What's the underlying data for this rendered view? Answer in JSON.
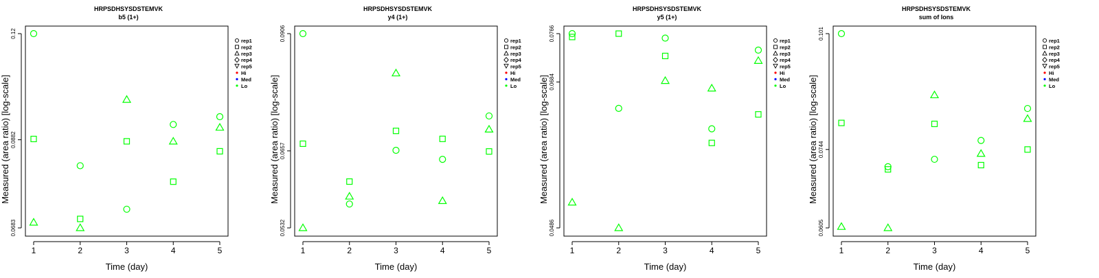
{
  "legend": {
    "entries": [
      {
        "label": "rep1",
        "symbol": "circle"
      },
      {
        "label": "rep2",
        "symbol": "square"
      },
      {
        "label": "rep3",
        "symbol": "triangle-up"
      },
      {
        "label": "rep4",
        "symbol": "diamond"
      },
      {
        "label": "rep5",
        "symbol": "triangle-down"
      },
      {
        "label": "Hi",
        "symbol": "dot",
        "color": "#ff0000"
      },
      {
        "label": "Med",
        "symbol": "dot",
        "color": "#0000ff"
      },
      {
        "label": "Lo",
        "symbol": "dot",
        "color": "#00ff00"
      }
    ]
  },
  "colors": {
    "series": "#00ff00",
    "axis": "#000000"
  },
  "chart_data": [
    {
      "type": "scatter",
      "title": "HRPSDHSYSDSTEMVK",
      "subtitle": "b5 (1+)",
      "xlabel": "Time (day)",
      "ylabel": "Measured (area ratio) [log-scale]",
      "log_y": true,
      "x_ticks": [
        1,
        2,
        3,
        4,
        5
      ],
      "y_ticks": [
        "0.0683",
        "0.0882",
        "0.12"
      ],
      "ylim": [
        0.0683,
        0.12
      ],
      "xlim": [
        1,
        5
      ],
      "grid": false,
      "legend_position": "right",
      "series": [
        {
          "name": "rep1",
          "marker": "circle",
          "x": [
            1,
            2,
            3,
            4,
            5
          ],
          "y": [
            0.12,
            0.0818,
            0.0721,
            0.0922,
            0.0943
          ]
        },
        {
          "name": "rep2",
          "marker": "square",
          "x": [
            1,
            2,
            3,
            4,
            5
          ],
          "y": [
            0.0884,
            0.0701,
            0.0878,
            0.0781,
            0.0853
          ]
        },
        {
          "name": "rep3",
          "marker": "triangle-up",
          "x": [
            1,
            2,
            3,
            4,
            5
          ],
          "y": [
            0.0694,
            0.0683,
            0.0991,
            0.0878,
            0.0914
          ]
        }
      ]
    },
    {
      "type": "scatter",
      "title": "HRPSDHSYSDSTEMVK",
      "subtitle": "y4 (1+)",
      "xlabel": "Time (day)",
      "ylabel": "Measured (area ratio) [log-scale]",
      "log_y": true,
      "x_ticks": [
        1,
        2,
        3,
        4,
        5
      ],
      "y_ticks": [
        "0.0532",
        "0.0657",
        "0.0906"
      ],
      "ylim": [
        0.0532,
        0.0906
      ],
      "xlim": [
        1,
        5
      ],
      "grid": false,
      "legend_position": "right",
      "series": [
        {
          "name": "rep1",
          "marker": "circle",
          "x": [
            1,
            2,
            3,
            4,
            5
          ],
          "y": [
            0.0906,
            0.0568,
            0.0658,
            0.0642,
            0.0723
          ]
        },
        {
          "name": "rep2",
          "marker": "square",
          "x": [
            1,
            2,
            3,
            4,
            5
          ],
          "y": [
            0.067,
            0.0604,
            0.0694,
            0.0679,
            0.0656
          ]
        },
        {
          "name": "rep3",
          "marker": "triangle-up",
          "x": [
            1,
            2,
            3,
            4,
            5
          ],
          "y": [
            0.0532,
            0.058,
            0.0813,
            0.0573,
            0.0697
          ]
        }
      ]
    },
    {
      "type": "scatter",
      "title": "HRPSDHSYSDSTEMVK",
      "subtitle": "y5 (1+)",
      "xlabel": "Time (day)",
      "ylabel": "Measured (area ratio) [log-scale]",
      "log_y": true,
      "x_ticks": [
        1,
        2,
        3,
        4,
        5
      ],
      "y_ticks": [
        "0.0486",
        "0.0684",
        "0.0766"
      ],
      "ylim": [
        0.0486,
        0.0766
      ],
      "xlim": [
        1,
        5
      ],
      "grid": false,
      "legend_position": "right",
      "series": [
        {
          "name": "rep1",
          "marker": "circle",
          "x": [
            1,
            2,
            3,
            4,
            5
          ],
          "y": [
            0.0766,
            0.0643,
            0.0758,
            0.0613,
            0.0737
          ]
        },
        {
          "name": "rep2",
          "marker": "square",
          "x": [
            1,
            2,
            3,
            4,
            5
          ],
          "y": [
            0.076,
            0.0766,
            0.0727,
            0.0593,
            0.0634
          ]
        },
        {
          "name": "rep3",
          "marker": "triangle-up",
          "x": [
            1,
            2,
            3,
            4,
            5
          ],
          "y": [
            0.0516,
            0.0486,
            0.0686,
            0.0674,
            0.0719
          ]
        }
      ]
    },
    {
      "type": "scatter",
      "title": "HRPSDHSYSDSTEMVK",
      "subtitle": "sum of Ions",
      "xlabel": "Time (day)",
      "ylabel": "Measured (area ratio) [log-scale]",
      "log_y": true,
      "x_ticks": [
        1,
        2,
        3,
        4,
        5
      ],
      "y_ticks": [
        "0.0605",
        "0.0744",
        "0.101"
      ],
      "ylim": [
        0.0605,
        0.101
      ],
      "xlim": [
        1,
        5
      ],
      "grid": false,
      "legend_position": "right",
      "series": [
        {
          "name": "rep1",
          "marker": "circle",
          "x": [
            1,
            2,
            3,
            4,
            5
          ],
          "y": [
            0.101,
            0.0711,
            0.0725,
            0.0762,
            0.0829
          ]
        },
        {
          "name": "rep2",
          "marker": "square",
          "x": [
            1,
            2,
            3,
            4,
            5
          ],
          "y": [
            0.0798,
            0.0706,
            0.0796,
            0.0714,
            0.0744
          ]
        },
        {
          "name": "rep3",
          "marker": "triangle-up",
          "x": [
            1,
            2,
            3,
            4,
            5
          ],
          "y": [
            0.0607,
            0.0605,
            0.0859,
            0.0736,
            0.0807
          ]
        }
      ]
    }
  ]
}
